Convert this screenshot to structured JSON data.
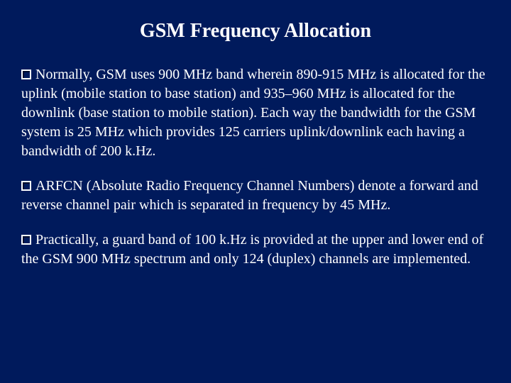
{
  "background_color": "#001a5c",
  "text_color": "#ffffff",
  "font_family": "Times New Roman",
  "title": {
    "text": "GSM Frequency Allocation",
    "fontsize": 28,
    "weight": "bold",
    "align": "center"
  },
  "bullets": [
    {
      "text": "Normally, GSM uses 900 MHz band wherein 890-915 MHz is allocated for the uplink (mobile station to base station) and 935–960 MHz is allocated for the downlink (base station to mobile station). Each way the bandwidth for the GSM system is 25 MHz which provides 125 carriers uplink/downlink each having a bandwidth of 200 k.Hz."
    },
    {
      "text": "ARFCN (Absolute Radio Frequency Channel Numbers) denote a forward and reverse channel pair which is separated in frequency by 45 MHz."
    },
    {
      "text": "Practically, a guard band of 100 k.Hz is provided at the upper and lower end of the GSM 900 MHz spectrum and only 124 (duplex) channels are implemented."
    }
  ],
  "bullet_style": {
    "marker": "hollow-square",
    "marker_size": 14,
    "marker_border_color": "#ffffff",
    "body_fontsize": 20,
    "line_height": 1.35
  }
}
